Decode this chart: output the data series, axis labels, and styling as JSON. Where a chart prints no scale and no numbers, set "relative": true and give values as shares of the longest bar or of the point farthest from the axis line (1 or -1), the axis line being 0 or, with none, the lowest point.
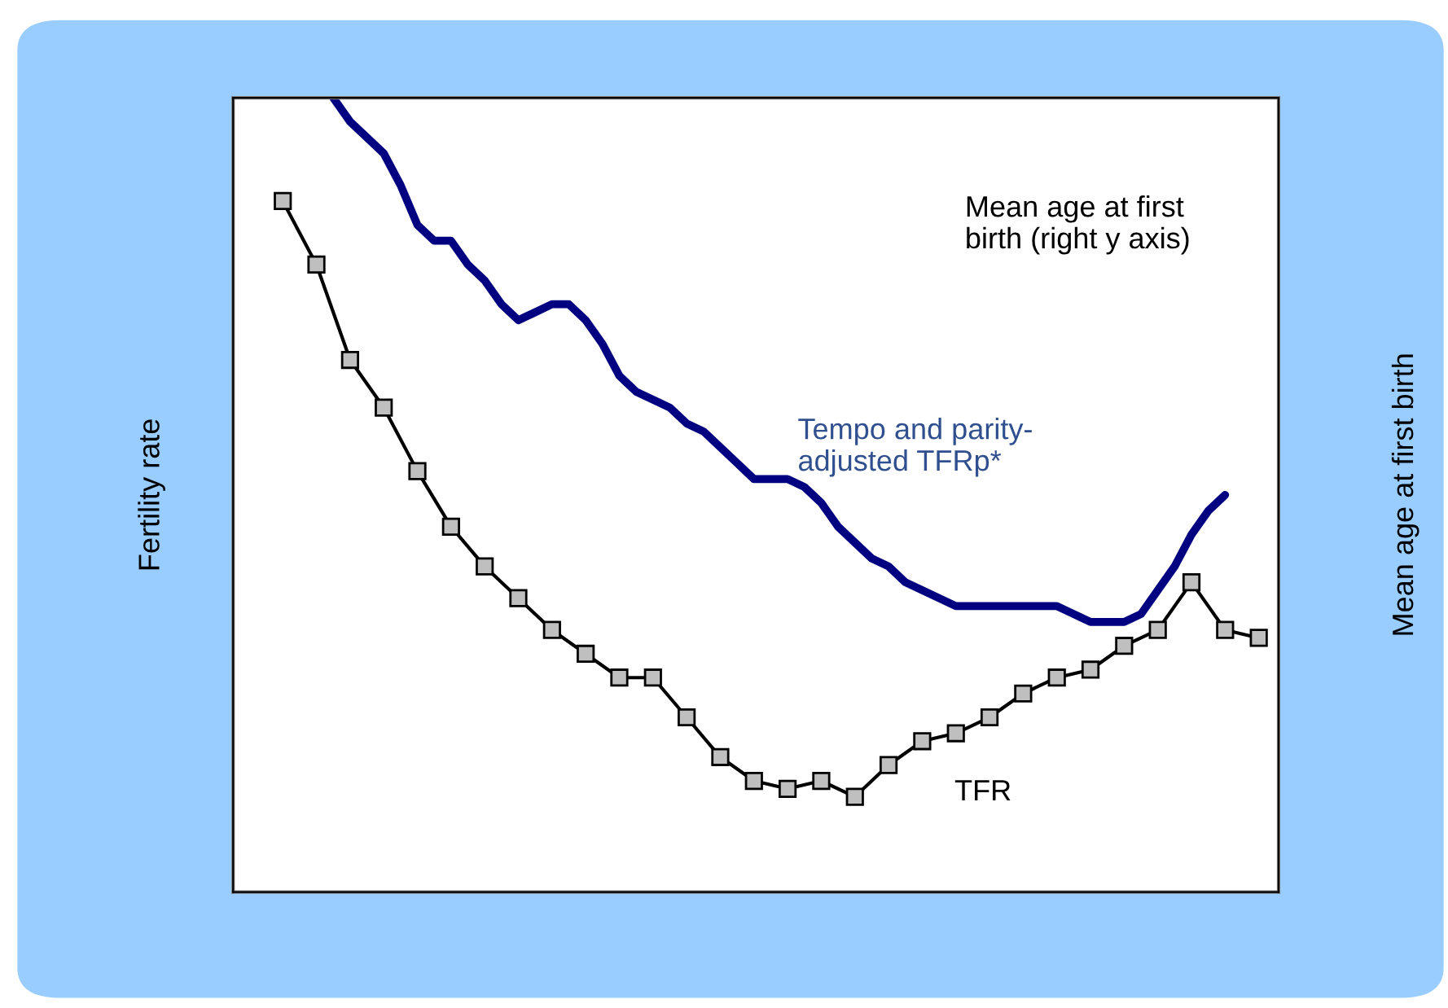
{
  "chart_data": {
    "type": "line",
    "relative": true,
    "ylabel": "Fertility rate",
    "y2label": "Mean age at first birth",
    "line_style": "solid",
    "categories": [
      null,
      null,
      null,
      null,
      null,
      null,
      null,
      null,
      null,
      null,
      null,
      null,
      null,
      null,
      null,
      null,
      null,
      null,
      null,
      null,
      null,
      null,
      null,
      null,
      null,
      null,
      null,
      null,
      null,
      null,
      null,
      null,
      null,
      null,
      null,
      null,
      null,
      null,
      null,
      null,
      null,
      null,
      null,
      null,
      null,
      null,
      null,
      null,
      null,
      null,
      null,
      null,
      null,
      null,
      null,
      null,
      null,
      null,
      null,
      null
    ],
    "series": [
      {
        "color": "#000000",
        "marker": "square",
        "values": [
          0.87,
          null,
          0.79,
          null,
          0.67,
          null,
          0.61,
          null,
          0.53,
          null,
          0.46,
          null,
          0.41,
          null,
          0.37,
          null,
          0.33,
          null,
          0.3,
          null,
          0.27,
          null,
          0.27,
          null,
          0.22,
          null,
          0.17,
          null,
          0.14,
          null,
          0.13,
          null,
          0.14,
          null,
          0.12,
          null,
          0.16,
          null,
          0.19,
          null,
          0.2,
          null,
          0.22,
          null,
          0.25,
          null,
          0.27,
          null,
          0.28,
          null,
          0.31,
          null,
          0.33,
          null,
          0.39,
          null,
          0.33,
          null,
          0.32,
          null
        ]
      },
      {
        "color": "#000080",
        "marker": "none",
        "values": [
          null,
          null,
          null,
          1.0,
          0.97,
          0.95,
          0.93,
          0.89,
          0.84,
          0.82,
          0.82,
          0.79,
          0.77,
          0.74,
          0.72,
          0.73,
          0.74,
          0.74,
          0.72,
          0.69,
          0.65,
          0.63,
          0.62,
          0.61,
          0.59,
          0.58,
          0.56,
          0.54,
          0.52,
          0.52,
          0.52,
          0.51,
          0.49,
          0.46,
          0.44,
          0.42,
          0.41,
          0.39,
          0.38,
          0.37,
          0.36,
          0.36,
          0.36,
          0.36,
          0.36,
          0.36,
          0.36,
          0.35,
          0.34,
          0.34,
          0.34,
          0.35,
          0.38,
          0.41,
          0.45,
          0.48,
          0.5,
          null,
          null,
          null
        ]
      }
    ],
    "annotations": [
      "TFR",
      "Tempo and parity-\nadjusted TFRp*",
      "Mean age at first\nbirth (right y axis)"
    ]
  }
}
